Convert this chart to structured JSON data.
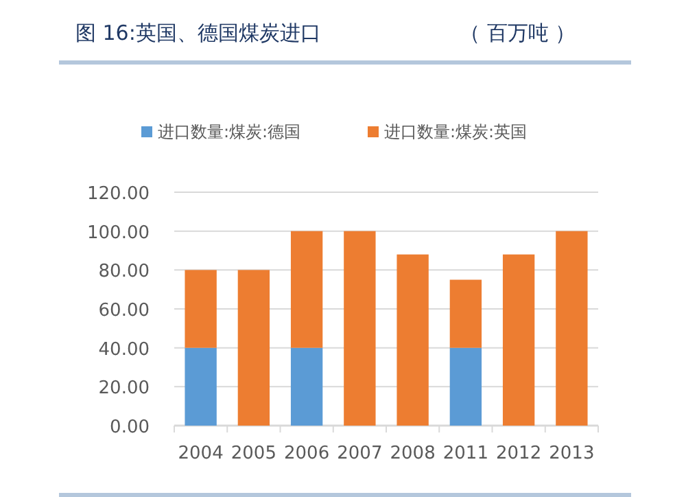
{
  "chart_data": {
    "type": "bar",
    "title": "图 16:英国、德国煤炭进口",
    "subtitle": "（ 百万吨 ）",
    "categories": [
      "2004",
      "2005",
      "2006",
      "2007",
      "2008",
      "2011",
      "2012",
      "2013"
    ],
    "series": [
      {
        "name": "进口数量:煤炭:德国",
        "color": "#5b9bd5",
        "values": [
          40,
          0,
          40,
          0,
          0,
          40,
          0,
          0
        ]
      },
      {
        "name": "进口数量:煤炭:英国",
        "color": "#ed7d31",
        "values": [
          40,
          80,
          60,
          100,
          88,
          35,
          88,
          100
        ]
      }
    ],
    "stacked": true,
    "ylim": [
      0,
      120
    ],
    "yticks": [
      {
        "value": 0,
        "label": "0.00"
      },
      {
        "value": 20,
        "label": "20.00"
      },
      {
        "value": 40,
        "label": "40.00"
      },
      {
        "value": 60,
        "label": "60.00"
      },
      {
        "value": 80,
        "label": "80.00"
      },
      {
        "value": 100,
        "label": "100.00"
      },
      {
        "value": 120,
        "label": "120.00"
      }
    ],
    "grid": "y",
    "legend": "top"
  }
}
